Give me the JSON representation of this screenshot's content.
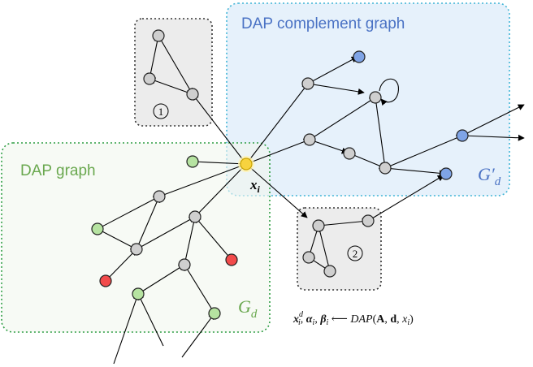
{
  "regions": {
    "dap_graph": {
      "label": "DAP graph",
      "symbol_main": "G",
      "symbol_sub": "d"
    },
    "complement": {
      "label": "DAP complement graph",
      "symbol_main": "G",
      "symbol_prime": "′",
      "symbol_sub": "d"
    },
    "cluster1": {
      "marker": "1"
    },
    "cluster2": {
      "marker": "2"
    }
  },
  "center_label": {
    "main": "x",
    "sub": "i"
  },
  "formula": {
    "lhs1": "x",
    "lhs1_sup": "d",
    "lhs1_sub": "i",
    "comma1": ", ",
    "lhs2": "α",
    "lhs2_sub": "i",
    "comma2": ", ",
    "lhs3": "β",
    "lhs3_sub": "i",
    "arrow": " ⟵ ",
    "func": "DAP",
    "open": "(",
    "arg_a": "A",
    "comma3": ", ",
    "arg_d": "d",
    "comma4": ", ",
    "arg_x": "x",
    "arg_x_sub": "i",
    "close": ")"
  },
  "colors": {
    "complement_fill": "#e6f1fb",
    "complement_border": "#3fb4d6",
    "complement_text": "#4a72c4",
    "dap_fill": "#f2f6ee",
    "dap_border": "#2f9e44",
    "dap_text": "#6aa84f",
    "cluster_fill": "#ececec",
    "cluster_border": "#333333",
    "node_gray": "#cfcfcf",
    "node_green": "#b6e3a1",
    "node_red": "#f24b4b",
    "node_blue": "#7fa4e6",
    "node_center": "#f7d33f"
  }
}
